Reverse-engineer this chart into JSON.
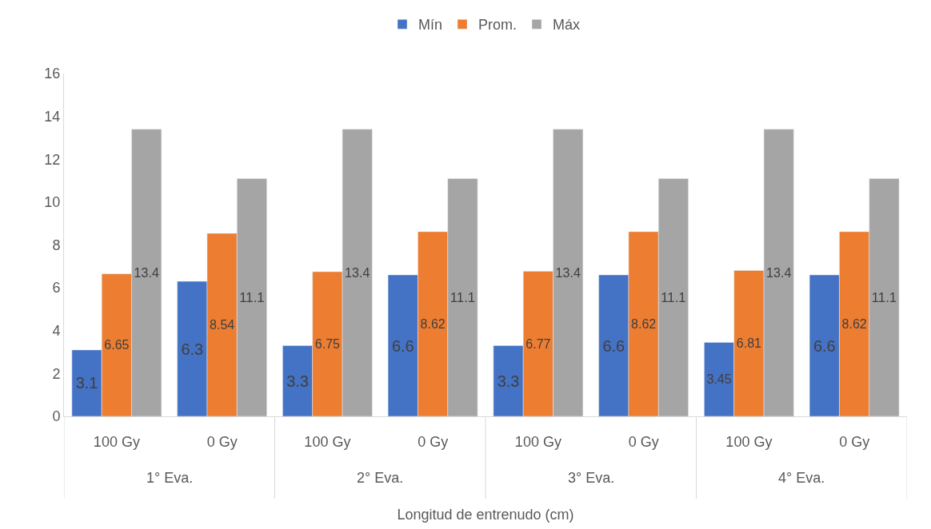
{
  "chart_data": {
    "type": "bar",
    "xlabel": "Longitud de entrenudo (cm)",
    "categories": [
      "100 Gy",
      "0 Gy",
      "100 Gy",
      "0 Gy",
      "100 Gy",
      "0 Gy",
      "100 Gy",
      "0 Gy"
    ],
    "series": [
      {
        "name": "Mín",
        "color": "#4472c4",
        "values": [
          3.1,
          6.3,
          3.3,
          6.6,
          3.3,
          6.6,
          3.45,
          6.6
        ]
      },
      {
        "name": "Prom.",
        "color": "#ed7d31",
        "values": [
          6.65,
          8.54,
          6.75,
          8.62,
          6.77,
          8.62,
          6.81,
          8.62
        ]
      },
      {
        "name": "Máx",
        "color": "#a5a5a5",
        "values": [
          13.4,
          11.1,
          13.4,
          11.1,
          13.4,
          11.1,
          13.4,
          11.1
        ]
      }
    ],
    "annotations": [
      "1° Eva.",
      "2° Eva.",
      "3° Eva.",
      "4° Eva."
    ],
    "ylim": [
      0,
      16
    ],
    "yticks": [
      0,
      2,
      4,
      6,
      8,
      10,
      12,
      14,
      16
    ],
    "data_labels": true,
    "legend": "top",
    "grid": false
  }
}
